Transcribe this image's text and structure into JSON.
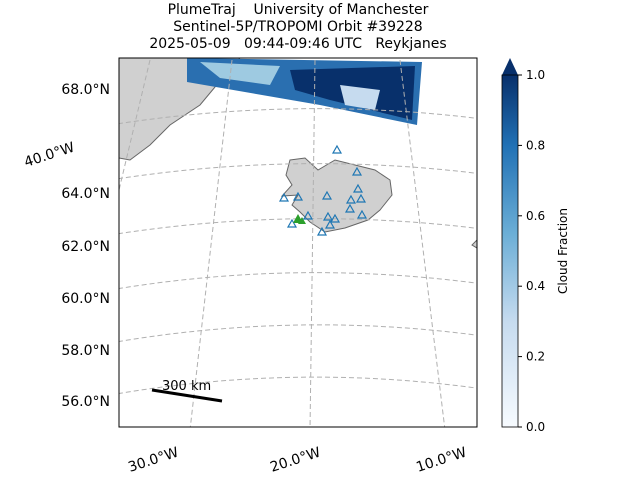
{
  "title": [
    "PlumeTraj    University of Manchester",
    "Sentinel-5P/TROPOMI Orbit #39228",
    "2025-05-09   09:44-09:46 UTC   Reykjanes"
  ],
  "lat_labels": [
    "68.0°N",
    "64.0°N",
    "62.0°N",
    "60.0°N",
    "58.0°N",
    "56.0°N"
  ],
  "lon_labels": [
    "40.0°W",
    "30.0°W",
    "20.0°W",
    "10.0°W"
  ],
  "scale_bar": "300 km",
  "colorbar": {
    "label": "Cloud Fraction",
    "lim": [
      0,
      1
    ],
    "ticks": [
      {
        "value": 0,
        "label": "0.0"
      },
      {
        "value": 0.2,
        "label": "0.2"
      },
      {
        "value": 0.4,
        "label": "0.4"
      },
      {
        "value": 0.6,
        "label": "0.6"
      },
      {
        "value": 0.8,
        "label": "0.8"
      },
      {
        "value": 1,
        "label": "1.0"
      }
    ]
  }
}
